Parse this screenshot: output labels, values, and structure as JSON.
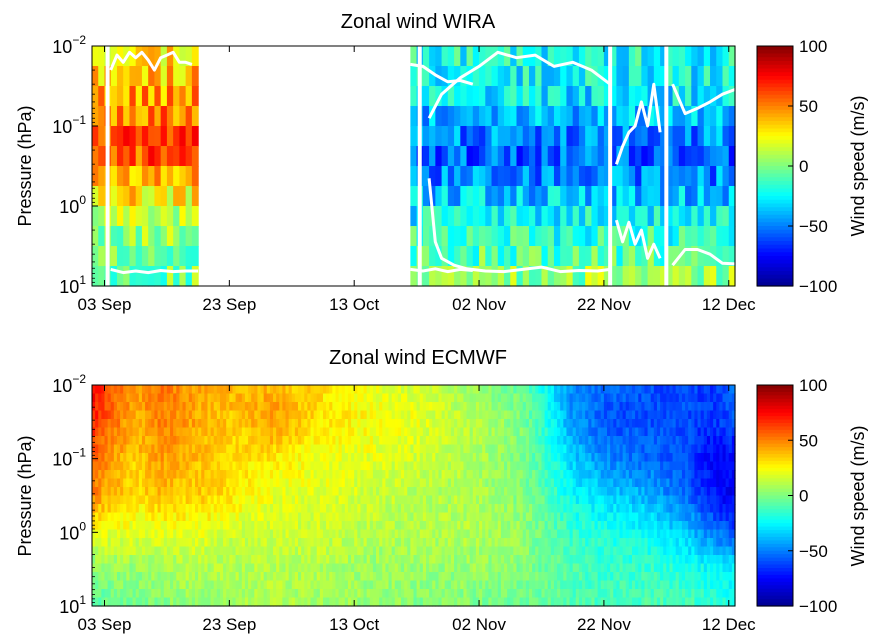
{
  "colors": {
    "colormap": [
      "#00008f",
      "#0000ff",
      "#0080ff",
      "#00ffff",
      "#80ff80",
      "#ffff00",
      "#ff8000",
      "#ff0000",
      "#800000"
    ],
    "profile_line": "#ffffff",
    "gap": "#ffffff"
  },
  "chart_data": [
    {
      "type": "heatmap",
      "title": "Zonal wind WIRA",
      "ylabel": "Pressure (hPa)",
      "y_scale": "log",
      "y_reversed": true,
      "ylim_hpa": [
        0.01,
        10
      ],
      "y_ticks": [
        {
          "base": "10",
          "exp": "−2"
        },
        {
          "base": "10",
          "exp": "−1"
        },
        {
          "base": "10",
          "exp": "0"
        },
        {
          "base": "10",
          "exp": "1"
        }
      ],
      "x_ticks": [
        "03 Sep",
        "23 Sep",
        "13 Oct",
        "02 Nov",
        "22 Nov",
        "12 Dec"
      ],
      "x_tick_days": [
        3,
        23,
        43,
        63,
        83,
        103
      ],
      "x_range_days": [
        1,
        104
      ],
      "x_day_origin": "Sep 0",
      "colorbar": {
        "label": "Wind speed (m/s)",
        "ticks": [
          "100",
          "50",
          "0",
          "−50",
          "−100"
        ],
        "min": -100,
        "max": 100
      },
      "data_gaps_days": [
        [
          18,
          52
        ]
      ],
      "white_vertical_lines_days": [
        3.5,
        53.5,
        84,
        93
      ],
      "wind_profiles_by_day_mps": [
        {
          "days": [
            1,
            2,
            3,
            4,
            5,
            6,
            7,
            8,
            9,
            10,
            11,
            12,
            13,
            14,
            15,
            16,
            17,
            18
          ],
          "pressure_hpa": [
            0.01,
            0.02,
            0.05,
            0.1,
            0.2,
            0.3,
            0.5,
            1,
            2,
            5,
            10
          ],
          "mean_mps": [
            30,
            35,
            45,
            55,
            60,
            55,
            40,
            20,
            5,
            -5,
            0
          ]
        },
        {
          "days": [
            52,
            53,
            54,
            55,
            56,
            57,
            58,
            59,
            60,
            61,
            62,
            63,
            64,
            65,
            66,
            67,
            68,
            69,
            70,
            71,
            72,
            73,
            74,
            75,
            76,
            77,
            78,
            79,
            80,
            81,
            82,
            83,
            84,
            85,
            86,
            87,
            88,
            89,
            90,
            91,
            92,
            93,
            94,
            95,
            96,
            97,
            98,
            99,
            100,
            101,
            102,
            103,
            104
          ],
          "pressure_hpa": [
            0.01,
            0.02,
            0.05,
            0.1,
            0.2,
            0.3,
            0.5,
            1,
            2,
            5,
            10
          ],
          "mean_mps": [
            -20,
            -25,
            -30,
            -45,
            -55,
            -55,
            -45,
            -30,
            -20,
            -5,
            10
          ]
        }
      ],
      "white_lines": [
        {
          "name": "upper line segment 1",
          "days": [
            4,
            5,
            6,
            7,
            8,
            9,
            10,
            11,
            12,
            13,
            14,
            15,
            16,
            17
          ],
          "pressure_hpa": [
            0.02,
            0.013,
            0.016,
            0.012,
            0.014,
            0.012,
            0.015,
            0.02,
            0.014,
            0.013,
            0.012,
            0.016,
            0.016,
            0.017
          ]
        },
        {
          "name": "lower line segment 1",
          "days": [
            4,
            6,
            8,
            10,
            12,
            14,
            16,
            18
          ],
          "pressure_hpa": [
            6.2,
            6.8,
            6.5,
            6.8,
            6.4,
            6.6,
            6.5,
            6.5
          ]
        },
        {
          "name": "upper line segment 2",
          "days": [
            52,
            54,
            56,
            58,
            60,
            62
          ],
          "pressure_hpa": [
            0.017,
            0.018,
            0.023,
            0.028,
            0.027,
            0.03
          ]
        },
        {
          "name": "lower line segment 2",
          "days": [
            52,
            54,
            56,
            58,
            60,
            62
          ],
          "pressure_hpa": [
            6.2,
            6.5,
            6.1,
            6.6,
            6.2,
            6.4
          ]
        },
        {
          "name": "upper line segment 3",
          "days": [
            55,
            57,
            60,
            63,
            66,
            69,
            72,
            75,
            78,
            81,
            84
          ],
          "pressure_hpa": [
            0.08,
            0.04,
            0.025,
            0.018,
            0.012,
            0.014,
            0.013,
            0.018,
            0.016,
            0.02,
            0.03
          ]
        },
        {
          "name": "lower line segment 3",
          "days": [
            55,
            56,
            57,
            59,
            61,
            64,
            67,
            70,
            73,
            76,
            79,
            82,
            84
          ],
          "pressure_hpa": [
            0.45,
            2.8,
            4.5,
            5.5,
            6.1,
            6.5,
            6.6,
            6.2,
            5.8,
            6.6,
            6.4,
            6.5,
            6.2
          ]
        },
        {
          "name": "upper line segment 4",
          "days": [
            85,
            86,
            87,
            88,
            89,
            90,
            91,
            92
          ],
          "pressure_hpa": [
            0.3,
            0.18,
            0.12,
            0.1,
            0.05,
            0.1,
            0.03,
            0.12
          ]
        },
        {
          "name": "lower line segment 4",
          "days": [
            85,
            86,
            87,
            88,
            89,
            90,
            91,
            92
          ],
          "pressure_hpa": [
            1.5,
            2.8,
            1.6,
            3,
            2,
            4.5,
            3,
            4.5
          ]
        },
        {
          "name": "upper line segment 5",
          "days": [
            94,
            96,
            98,
            100,
            102,
            104
          ],
          "pressure_hpa": [
            0.03,
            0.07,
            0.06,
            0.05,
            0.04,
            0.035
          ]
        },
        {
          "name": "lower line segment 5",
          "days": [
            94,
            96,
            98,
            100,
            102,
            104
          ],
          "pressure_hpa": [
            5.5,
            3.5,
            3.5,
            4,
            5.2,
            5.3
          ]
        }
      ]
    },
    {
      "type": "heatmap",
      "title": "Zonal wind ECMWF",
      "ylabel": "Pressure (hPa)",
      "y_scale": "log",
      "y_reversed": true,
      "ylim_hpa": [
        0.01,
        10
      ],
      "y_ticks": [
        {
          "base": "10",
          "exp": "−2"
        },
        {
          "base": "10",
          "exp": "−1"
        },
        {
          "base": "10",
          "exp": "0"
        },
        {
          "base": "10",
          "exp": "1"
        }
      ],
      "x_ticks": [
        "03 Sep",
        "23 Sep",
        "13 Oct",
        "02 Nov",
        "22 Nov",
        "12 Dec"
      ],
      "x_tick_days": [
        3,
        23,
        43,
        63,
        83,
        103
      ],
      "x_range_days": [
        1,
        104
      ],
      "x_day_origin": "Sep 0",
      "colorbar": {
        "label": "Wind speed (m/s)",
        "ticks": [
          "100",
          "50",
          "0",
          "−50",
          "−100"
        ],
        "min": -100,
        "max": 100
      },
      "wind_keyframes_mps": {
        "days": [
          1,
          4,
          8,
          12,
          16,
          20,
          24,
          30,
          38,
          46,
          54,
          62,
          70,
          74,
          78,
          84,
          90,
          96,
          100,
          104
        ],
        "pressure_hpa": [
          0.01,
          0.03,
          0.1,
          0.3,
          1,
          3,
          10
        ],
        "values": [
          [
            75,
            60,
            45,
            55,
            45,
            40,
            40,
            40,
            30,
            20,
            15,
            5,
            -5,
            -25,
            -50,
            -55,
            -60,
            -60,
            -65,
            -55
          ],
          [
            70,
            55,
            40,
            50,
            45,
            40,
            35,
            45,
            30,
            25,
            20,
            10,
            0,
            -20,
            -45,
            -60,
            -60,
            -60,
            -65,
            -60
          ],
          [
            55,
            45,
            35,
            45,
            40,
            35,
            30,
            30,
            20,
            20,
            15,
            10,
            0,
            -15,
            -35,
            -50,
            -55,
            -60,
            -75,
            -75
          ],
          [
            50,
            40,
            30,
            40,
            35,
            35,
            30,
            20,
            20,
            15,
            10,
            10,
            0,
            -10,
            -25,
            -35,
            -40,
            -55,
            -70,
            -80
          ],
          [
            25,
            20,
            20,
            20,
            20,
            20,
            15,
            15,
            15,
            10,
            10,
            10,
            5,
            -5,
            -15,
            -20,
            -25,
            -35,
            -50,
            -60
          ],
          [
            0,
            5,
            5,
            5,
            10,
            10,
            10,
            10,
            10,
            5,
            5,
            5,
            0,
            -5,
            -10,
            -15,
            -15,
            -20,
            -25,
            -30
          ],
          [
            -10,
            -5,
            0,
            0,
            5,
            5,
            5,
            10,
            5,
            5,
            0,
            0,
            -5,
            -5,
            -10,
            -10,
            -10,
            -10,
            -15,
            -20
          ]
        ]
      }
    }
  ]
}
